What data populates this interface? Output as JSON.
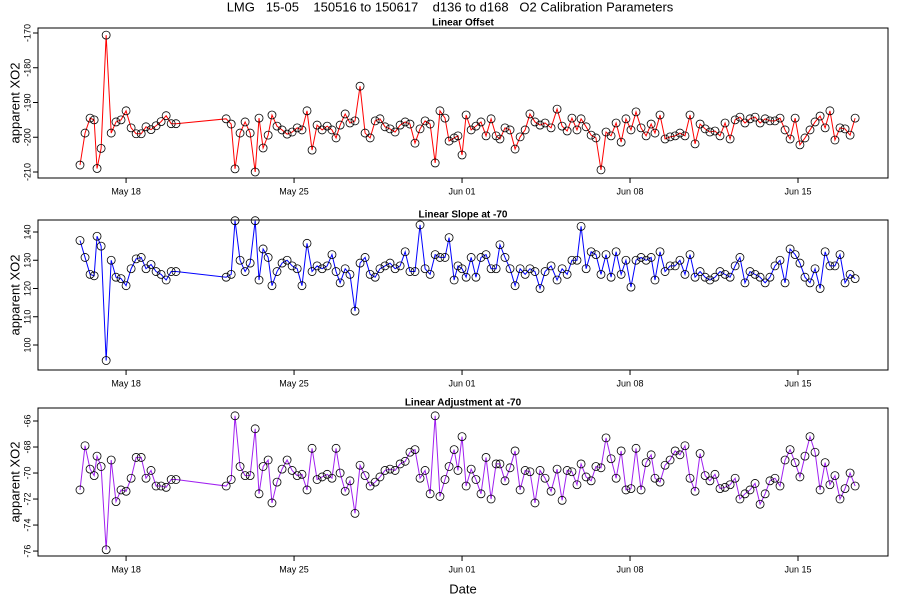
{
  "title": "LMG   15-05    150516 to 150617    d136 to d168   O2 Calibration Parameters",
  "chart_data": [
    {
      "type": "line",
      "title": "Linear Offset",
      "ylabel": "apparent XO2",
      "color": "#ff0000",
      "marker": "open-circle",
      "xlim": [
        134.33,
        169.75
      ],
      "ylim": [
        -211.73,
        -168.56
      ],
      "xticks": [
        {
          "value": 138,
          "label": "May 18"
        },
        {
          "value": 145,
          "label": "May 25"
        },
        {
          "value": 152,
          "label": "Jun 01"
        },
        {
          "value": 159,
          "label": "Jun 08"
        },
        {
          "value": 166,
          "label": "Jun 15"
        }
      ],
      "yticks": [
        -210,
        -200,
        -190,
        -180,
        -170
      ],
      "x": [
        136.08,
        136.29,
        136.5,
        136.67,
        136.79,
        136.96,
        137.17,
        137.38,
        137.58,
        137.79,
        138,
        138.21,
        138.42,
        138.63,
        138.83,
        139.04,
        139.25,
        139.46,
        139.67,
        139.88,
        140.08,
        142.17,
        142.38,
        142.54,
        142.75,
        142.96,
        143.17,
        143.38,
        143.54,
        143.71,
        143.92,
        144.08,
        144.29,
        144.5,
        144.71,
        144.92,
        145.13,
        145.33,
        145.54,
        145.75,
        145.96,
        146.17,
        146.38,
        146.58,
        146.75,
        146.92,
        147.13,
        147.33,
        147.54,
        147.75,
        147.96,
        148.17,
        148.38,
        148.58,
        148.79,
        149,
        149.21,
        149.42,
        149.63,
        149.83,
        150.04,
        150.25,
        150.46,
        150.67,
        150.88,
        151.08,
        151.29,
        151.46,
        151.67,
        151.83,
        152,
        152.17,
        152.38,
        152.58,
        152.79,
        153,
        153.21,
        153.42,
        153.58,
        153.79,
        154,
        154.21,
        154.42,
        154.63,
        154.83,
        155.04,
        155.25,
        155.46,
        155.71,
        155.96,
        156.17,
        156.38,
        156.58,
        156.79,
        156.96,
        157.17,
        157.38,
        157.58,
        157.79,
        158,
        158.21,
        158.42,
        158.63,
        158.83,
        159.04,
        159.25,
        159.46,
        159.67,
        159.88,
        160.04,
        160.25,
        160.46,
        160.67,
        160.88,
        161.08,
        161.29,
        161.5,
        161.71,
        161.92,
        162.13,
        162.33,
        162.54,
        162.75,
        162.96,
        163.17,
        163.38,
        163.58,
        163.79,
        164,
        164.21,
        164.42,
        164.63,
        164.83,
        165.04,
        165.25,
        165.46,
        165.67,
        165.88,
        166.08,
        166.29,
        166.5,
        166.71,
        166.92,
        167.13,
        167.33,
        167.54,
        167.75,
        167.96,
        168.17,
        168.38
      ],
      "values": [
        -208,
        -198.8,
        -194.5,
        -195,
        -209,
        -203.2,
        -170.6,
        -198.8,
        -195.6,
        -195,
        -192.4,
        -197.3,
        -199,
        -199,
        -197,
        -197.8,
        -196.7,
        -195.5,
        -193.8,
        -196.1,
        -196.1,
        -194.7,
        -196.2,
        -209.1,
        -198.8,
        -195.6,
        -198.8,
        -210,
        -194.5,
        -203.1,
        -199.4,
        -193.6,
        -196.8,
        -197.9,
        -199.1,
        -198.5,
        -197.3,
        -197.9,
        -192.4,
        -203.7,
        -196.5,
        -197.9,
        -196.8,
        -197.9,
        -200.2,
        -196.5,
        -193.3,
        -195.9,
        -195.3,
        -185.3,
        -198.8,
        -200.2,
        -195.3,
        -194.7,
        -197,
        -197.6,
        -198.5,
        -196.5,
        -195.6,
        -196.2,
        -201.7,
        -197.6,
        -195.3,
        -196.2,
        -207.4,
        -192.4,
        -194.5,
        -201.1,
        -200.2,
        -199.6,
        -205.1,
        -193.6,
        -197.9,
        -196.8,
        -195.6,
        -199.6,
        -194.7,
        -199.6,
        -200.5,
        -197.3,
        -197.9,
        -203.4,
        -199.9,
        -197.9,
        -193.3,
        -195.6,
        -196.5,
        -195.9,
        -197.3,
        -191.9,
        -196.8,
        -198.2,
        -194.5,
        -197.9,
        -194.7,
        -197,
        -199.4,
        -200.2,
        -209.4,
        -198.5,
        -199.6,
        -195.9,
        -201.4,
        -194.7,
        -197.9,
        -192.7,
        -197.3,
        -199.6,
        -196.2,
        -198.8,
        -193.6,
        -200.5,
        -199.9,
        -199.6,
        -198.8,
        -199.6,
        -193.6,
        -201.9,
        -196.2,
        -197.6,
        -198.5,
        -198.2,
        -199.6,
        -195.9,
        -200.5,
        -195,
        -194.2,
        -195.9,
        -194.7,
        -194.2,
        -195.9,
        -194.7,
        -195.3,
        -195.3,
        -194.5,
        -197.9,
        -200.5,
        -194.5,
        -202.2,
        -200.2,
        -197.9,
        -195.6,
        -193.9,
        -197.3,
        -192.4,
        -200.8,
        -197.3,
        -197.6,
        -199.4,
        -194.5
      ]
    },
    {
      "type": "line",
      "title": "Linear Slope at -70",
      "ylabel": "apparent XO2",
      "color": "#0000ff",
      "marker": "open-circle",
      "xlim": [
        134.33,
        169.75
      ],
      "ylim": [
        91.15,
        144.25
      ],
      "xticks": [
        {
          "value": 138,
          "label": "May 18"
        },
        {
          "value": 145,
          "label": "May 25"
        },
        {
          "value": 152,
          "label": "Jun 01"
        },
        {
          "value": 159,
          "label": "Jun 08"
        },
        {
          "value": 166,
          "label": "Jun 15"
        }
      ],
      "yticks": [
        100,
        110,
        120,
        130,
        140
      ],
      "x": [
        136.08,
        136.29,
        136.5,
        136.67,
        136.79,
        136.96,
        137.17,
        137.38,
        137.58,
        137.79,
        138,
        138.21,
        138.42,
        138.63,
        138.83,
        139.04,
        139.25,
        139.46,
        139.67,
        139.88,
        140.08,
        142.17,
        142.38,
        142.54,
        142.75,
        142.96,
        143.17,
        143.38,
        143.54,
        143.71,
        143.92,
        144.08,
        144.29,
        144.5,
        144.71,
        144.92,
        145.13,
        145.33,
        145.54,
        145.75,
        145.96,
        146.17,
        146.38,
        146.58,
        146.75,
        146.92,
        147.13,
        147.33,
        147.54,
        147.75,
        147.96,
        148.17,
        148.38,
        148.58,
        148.79,
        149,
        149.21,
        149.42,
        149.63,
        149.83,
        150.04,
        150.25,
        150.46,
        150.67,
        150.88,
        151.08,
        151.29,
        151.46,
        151.67,
        151.83,
        152,
        152.17,
        152.38,
        152.58,
        152.79,
        153,
        153.21,
        153.42,
        153.58,
        153.79,
        154,
        154.21,
        154.42,
        154.63,
        154.83,
        155.04,
        155.25,
        155.46,
        155.71,
        155.96,
        156.17,
        156.38,
        156.58,
        156.79,
        156.96,
        157.17,
        157.38,
        157.58,
        157.79,
        158,
        158.21,
        158.42,
        158.63,
        158.83,
        159.04,
        159.25,
        159.46,
        159.67,
        159.88,
        160.04,
        160.25,
        160.46,
        160.67,
        160.88,
        161.08,
        161.29,
        161.5,
        161.71,
        161.92,
        162.13,
        162.33,
        162.54,
        162.75,
        162.96,
        163.17,
        163.38,
        163.58,
        163.79,
        164,
        164.21,
        164.42,
        164.63,
        164.83,
        165.04,
        165.25,
        165.46,
        165.67,
        165.88,
        166.08,
        166.29,
        166.5,
        166.71,
        166.92,
        167.13,
        167.33,
        167.54,
        167.75,
        167.96,
        168.17,
        168.38
      ],
      "values": [
        137,
        131,
        125,
        124.5,
        138.5,
        135,
        94.5,
        130,
        124,
        123.5,
        121,
        127,
        130.5,
        131,
        127,
        128.5,
        126,
        125,
        123,
        126,
        126,
        124,
        125,
        144,
        130,
        126,
        129,
        144,
        123,
        134,
        131,
        121,
        126,
        129,
        130,
        128,
        127,
        121,
        136,
        126,
        128,
        127,
        128,
        132,
        126,
        122,
        127,
        125,
        112,
        129,
        131,
        125,
        124,
        127,
        128,
        129,
        127,
        128,
        133,
        126,
        126,
        142.5,
        127,
        125,
        132,
        131,
        131,
        138,
        123,
        128,
        127,
        124,
        131,
        124,
        131,
        132,
        127,
        127,
        135.5,
        131,
        127,
        121,
        127,
        125,
        127,
        126,
        120,
        126,
        128,
        123,
        127,
        125,
        130,
        130,
        142,
        127,
        133,
        132,
        125,
        132,
        124,
        133,
        125,
        130,
        120.5,
        130,
        131,
        130,
        131,
        123,
        133,
        126,
        128,
        128,
        130,
        125,
        132,
        124,
        126,
        124,
        123,
        124,
        126,
        125,
        124,
        128,
        131,
        122,
        126,
        125,
        124,
        122,
        124,
        128,
        130,
        122,
        134,
        132,
        129,
        124,
        122,
        127,
        120,
        133,
        128,
        128,
        132,
        122,
        125,
        123.5
      ]
    },
    {
      "type": "line",
      "title": "Linear Adjustment at -70",
      "ylabel": "apparent XO2",
      "xlabel": "Date",
      "color": "#a020f0",
      "marker": "open-circle",
      "xlim": [
        134.33,
        169.75
      ],
      "ylim": [
        -76.38,
        -65
      ],
      "xticks": [
        {
          "value": 138,
          "label": "May 18"
        },
        {
          "value": 145,
          "label": "May 25"
        },
        {
          "value": 152,
          "label": "Jun 01"
        },
        {
          "value": 159,
          "label": "Jun 08"
        },
        {
          "value": 166,
          "label": "Jun 15"
        }
      ],
      "yticks": [
        -76,
        -74,
        -72,
        -70,
        -68,
        -66
      ],
      "x": [
        136.08,
        136.29,
        136.5,
        136.67,
        136.79,
        136.96,
        137.17,
        137.38,
        137.58,
        137.79,
        138,
        138.21,
        138.42,
        138.63,
        138.83,
        139.04,
        139.25,
        139.46,
        139.67,
        139.88,
        140.08,
        142.17,
        142.38,
        142.54,
        142.75,
        142.96,
        143.17,
        143.38,
        143.54,
        143.71,
        143.92,
        144.08,
        144.29,
        144.5,
        144.71,
        144.92,
        145.13,
        145.33,
        145.54,
        145.75,
        145.96,
        146.17,
        146.38,
        146.58,
        146.75,
        146.92,
        147.13,
        147.33,
        147.54,
        147.75,
        147.96,
        148.17,
        148.38,
        148.58,
        148.79,
        149,
        149.21,
        149.42,
        149.63,
        149.83,
        150.04,
        150.25,
        150.46,
        150.67,
        150.88,
        151.08,
        151.29,
        151.46,
        151.67,
        151.83,
        152,
        152.17,
        152.38,
        152.58,
        152.79,
        153,
        153.21,
        153.42,
        153.58,
        153.79,
        154,
        154.21,
        154.42,
        154.63,
        154.83,
        155.04,
        155.25,
        155.46,
        155.71,
        155.96,
        156.17,
        156.38,
        156.58,
        156.79,
        156.96,
        157.17,
        157.38,
        157.58,
        157.79,
        158,
        158.21,
        158.42,
        158.63,
        158.83,
        159.04,
        159.25,
        159.46,
        159.67,
        159.88,
        160.04,
        160.25,
        160.46,
        160.67,
        160.88,
        161.08,
        161.29,
        161.5,
        161.71,
        161.92,
        162.13,
        162.33,
        162.54,
        162.75,
        162.96,
        163.17,
        163.38,
        163.58,
        163.79,
        164,
        164.21,
        164.42,
        164.63,
        164.83,
        165.04,
        165.25,
        165.46,
        165.67,
        165.88,
        166.08,
        166.29,
        166.5,
        166.71,
        166.92,
        167.13,
        167.33,
        167.54,
        167.75,
        167.96,
        168.17,
        168.38
      ],
      "values": [
        -71.3,
        -67.9,
        -69.7,
        -70.2,
        -68.7,
        -69.5,
        -75.9,
        -69.0,
        -72.2,
        -71.3,
        -71.4,
        -70.4,
        -68.8,
        -68.8,
        -70.4,
        -69.8,
        -71.0,
        -71.0,
        -71.1,
        -70.5,
        -70.5,
        -71.0,
        -70.5,
        -65.6,
        -69.5,
        -70.2,
        -70.2,
        -66.6,
        -71.6,
        -69.5,
        -69.0,
        -72.3,
        -70.7,
        -69.7,
        -69.0,
        -69.8,
        -70.2,
        -70.1,
        -71.3,
        -68.1,
        -70.5,
        -70.3,
        -70.1,
        -70.4,
        -68.1,
        -70.0,
        -71.4,
        -70.6,
        -73.1,
        -69.4,
        -70.2,
        -71.0,
        -70.7,
        -70.3,
        -69.8,
        -69.7,
        -69.8,
        -69.3,
        -69.1,
        -68.4,
        -68.2,
        -70.4,
        -69.8,
        -71.6,
        -65.6,
        -71.8,
        -70.5,
        -69.5,
        -68.2,
        -69.8,
        -67.2,
        -71.0,
        -69.7,
        -70.5,
        -71.6,
        -68.8,
        -72.0,
        -69.3,
        -69.3,
        -70.6,
        -69.6,
        -68.3,
        -71.3,
        -69.8,
        -69.9,
        -72.3,
        -69.8,
        -70.4,
        -71.4,
        -69.7,
        -72.1,
        -69.8,
        -69.9,
        -70.9,
        -69.3,
        -70.3,
        -70.6,
        -69.5,
        -69.6,
        -67.3,
        -68.9,
        -70.4,
        -68.3,
        -71.3,
        -71.2,
        -68.1,
        -71.3,
        -69.2,
        -68.6,
        -70.4,
        -70.7,
        -69.4,
        -69.0,
        -68.3,
        -68.6,
        -67.9,
        -70.4,
        -71.4,
        -68.5,
        -70.2,
        -70.6,
        -70.1,
        -71.2,
        -71.1,
        -70.9,
        -70.4,
        -72.0,
        -71.6,
        -71.3,
        -70.8,
        -72.4,
        -71.6,
        -70.6,
        -70.4,
        -71.0,
        -69.0,
        -68.2,
        -69.2,
        -70.3,
        -68.7,
        -67.2,
        -68.4,
        -71.3,
        -69.2,
        -70.9,
        -70.2,
        -72.0,
        -71.2,
        -70.0,
        -71.0
      ]
    }
  ]
}
